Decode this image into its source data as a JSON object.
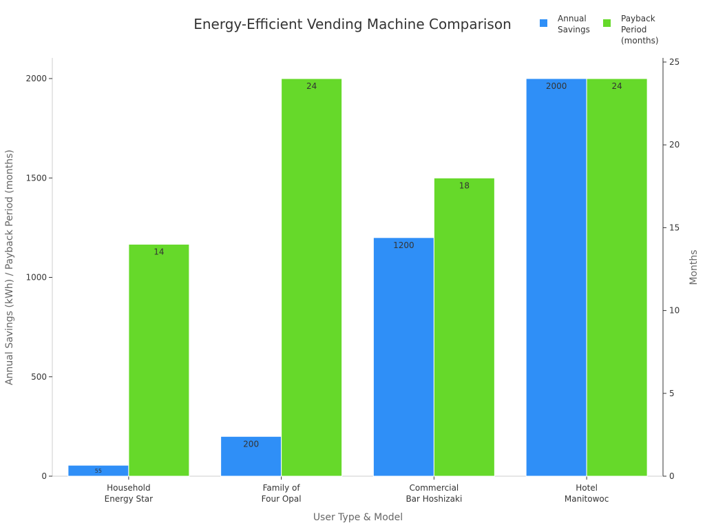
{
  "chart_data": {
    "type": "bar",
    "title": "Energy-Efficient Vending Machine Comparison",
    "xlabel": "User Type & Model",
    "ylabel": "Annual Savings (kWh) / Payback Period (months)",
    "y2label": "Months",
    "categories": [
      [
        "Household",
        "Energy Star"
      ],
      [
        "Family of",
        "Four Opal"
      ],
      [
        "Commercial",
        "Bar Hoshizaki"
      ],
      [
        "Hotel",
        "Manitowoc"
      ]
    ],
    "series": [
      {
        "name": "Annual Savings",
        "legend_lines": [
          "Annual",
          "Savings"
        ],
        "axis": "left",
        "color": "#2f8ff7",
        "values": [
          55,
          200,
          1200,
          2000
        ]
      },
      {
        "name": "Payback Period (months)",
        "legend_lines": [
          "Payback",
          "Period",
          "(months)"
        ],
        "axis": "right",
        "color": "#66d92a",
        "values": [
          14,
          24,
          18,
          24
        ]
      }
    ],
    "ylim": [
      0,
      2104
    ],
    "y2lim": [
      0,
      25.25
    ],
    "yticks": [
      0,
      500,
      1000,
      1500,
      2000
    ],
    "y2ticks": [
      0,
      5,
      10,
      15,
      20,
      25
    ],
    "grid": false,
    "legend_position": "top-right"
  }
}
